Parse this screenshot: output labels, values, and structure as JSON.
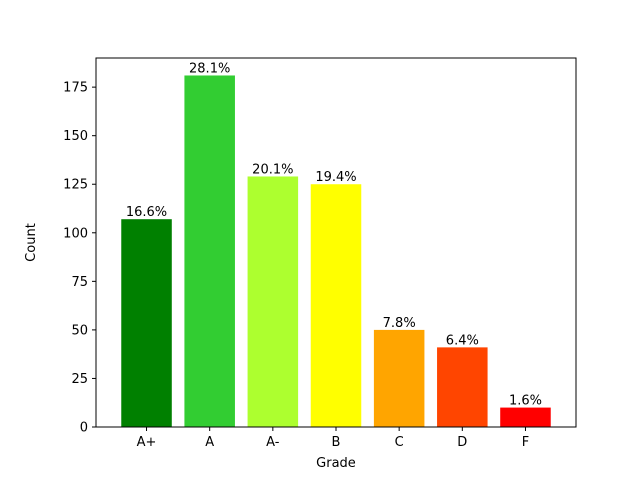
{
  "chart_data": {
    "type": "bar",
    "title": "",
    "xlabel": "Grade",
    "ylabel": "Count",
    "categories": [
      "A+",
      "A",
      "A-",
      "B",
      "C",
      "D",
      "F"
    ],
    "values": [
      107,
      181,
      129,
      125,
      50,
      41,
      10
    ],
    "data_labels": [
      "16.6%",
      "28.1%",
      "20.1%",
      "19.4%",
      "7.8%",
      "6.4%",
      "1.6%"
    ],
    "colors": [
      "#008000",
      "#32cd32",
      "#adff2f",
      "#ffff00",
      "#ffa500",
      "#ff4500",
      "#ff0000"
    ],
    "ylim": [
      0,
      190
    ],
    "yticks": [
      0,
      25,
      50,
      75,
      100,
      125,
      150,
      175
    ],
    "grid": false,
    "legend": "none"
  }
}
